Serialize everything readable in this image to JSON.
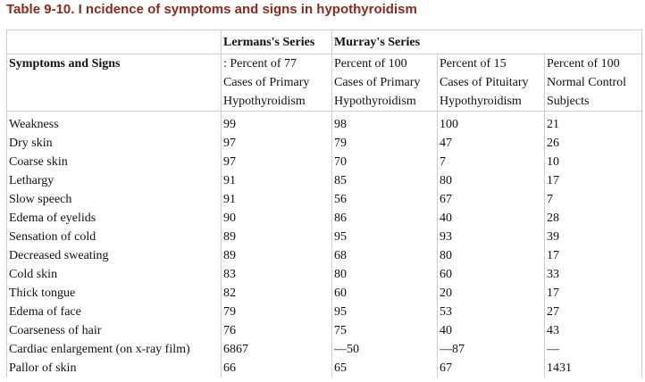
{
  "title": "Table 9-10. I   ncidence of symptoms and signs in hypothyroidism",
  "groups": [
    "Lermans's Series",
    "Murray's Series"
  ],
  "columns": {
    "symptoms": "Symptoms and Signs",
    "c1": [
      ": Percent of 77",
      "Cases of Primary",
      "Hypothyroidism"
    ],
    "c2": [
      "Percent of 100",
      "Cases of Primary",
      "Hypothyroidism"
    ],
    "c3": [
      "Percent of 15",
      "Cases of Pituitary",
      "Hypothyroidism"
    ],
    "c4": [
      "Percent of 100",
      "Normal Control",
      "Subjects"
    ]
  },
  "rows": [
    {
      "name": "Weakness",
      "v": [
        "99",
        "98",
        "100",
        "21"
      ]
    },
    {
      "name": "Dry skin",
      "v": [
        "97",
        "79",
        "47",
        "26"
      ]
    },
    {
      "name": "Coarse skin",
      "v": [
        "97",
        "70",
        "7",
        "10"
      ]
    },
    {
      "name": "Lethargy",
      "v": [
        "91",
        "85",
        "80",
        "17"
      ]
    },
    {
      "name": "Slow speech",
      "v": [
        "91",
        "56",
        "67",
        "7"
      ]
    },
    {
      "name": "Edema of eyelids",
      "v": [
        "90",
        "86",
        "40",
        "28"
      ]
    },
    {
      "name": "Sensation of cold",
      "v": [
        "89",
        "95",
        "93",
        "39"
      ]
    },
    {
      "name": "Decreased sweating",
      "v": [
        "89",
        "68",
        "80",
        "17"
      ]
    },
    {
      "name": "Cold skin",
      "v": [
        "83",
        "80",
        "60",
        "33"
      ]
    },
    {
      "name": "Thick tongue",
      "v": [
        "82",
        "60",
        "20",
        "17"
      ]
    },
    {
      "name": "Edema of face",
      "v": [
        "79",
        "95",
        "53",
        "27"
      ]
    },
    {
      "name": "Coarseness of hair",
      "v": [
        "76",
        "75",
        "40",
        "43"
      ]
    },
    {
      "name": "Cardiac enlargement (on x-ray film)",
      "v": [
        "6867",
        "—50",
        "—87",
        "—"
      ]
    },
    {
      "name": "Pallor of skin",
      "v": [
        "66",
        "65",
        "67",
        "1431"
      ]
    }
  ]
}
